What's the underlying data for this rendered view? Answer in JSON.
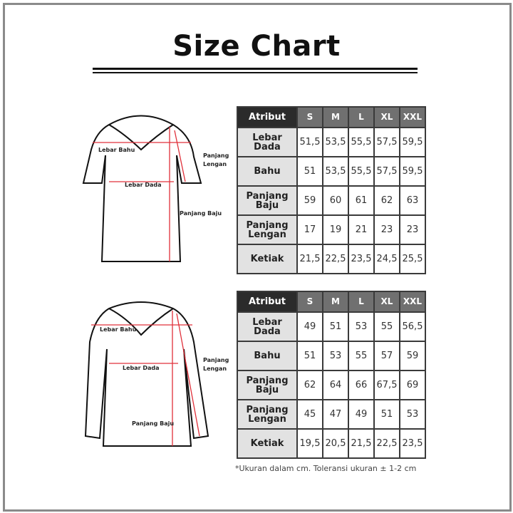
{
  "title": "Size Chart",
  "diagram_labels": {
    "lebar_bahu": "Lebar Bahu",
    "lebar_dada": "Lebar Dada",
    "panjang_baju": "Panjang Baju",
    "panjang_lengan_1": "Panjang",
    "panjang_lengan_2": "Lengan"
  },
  "colors": {
    "header_dark": "#2b2b2b",
    "header_size": "#707070",
    "row_label_bg": "#e2e2e2",
    "measure_line": "#e0303a"
  },
  "chart_data": [
    {
      "type": "table",
      "columns": [
        "Atribut",
        "S",
        "M",
        "L",
        "XL",
        "XXL"
      ],
      "rows": [
        {
          "label": "Lebar Dada",
          "values": [
            "51,5",
            "53,5",
            "55,5",
            "57,5",
            "59,5"
          ]
        },
        {
          "label": "Bahu",
          "values": [
            "51",
            "53,5",
            "55,5",
            "57,5",
            "59,5"
          ]
        },
        {
          "label": "Panjang Baju",
          "values": [
            "59",
            "60",
            "61",
            "62",
            "63"
          ]
        },
        {
          "label": "Panjang Lengan",
          "values": [
            "17",
            "19",
            "21",
            "23",
            "23"
          ]
        },
        {
          "label": "Ketiak",
          "values": [
            "21,5",
            "22,5",
            "23,5",
            "24,5",
            "25,5"
          ]
        }
      ]
    },
    {
      "type": "table",
      "columns": [
        "Atribut",
        "S",
        "M",
        "L",
        "XL",
        "XXL"
      ],
      "rows": [
        {
          "label": "Lebar Dada",
          "values": [
            "49",
            "51",
            "53",
            "55",
            "56,5"
          ]
        },
        {
          "label": "Bahu",
          "values": [
            "51",
            "53",
            "55",
            "57",
            "59"
          ]
        },
        {
          "label": "Panjang Baju",
          "values": [
            "62",
            "64",
            "66",
            "67,5",
            "69"
          ]
        },
        {
          "label": "Panjang Lengan",
          "values": [
            "45",
            "47",
            "49",
            "51",
            "53"
          ]
        },
        {
          "label": "Ketiak",
          "values": [
            "19,5",
            "20,5",
            "21,5",
            "22,5",
            "23,5"
          ]
        }
      ]
    }
  ],
  "note": "*Ukuran dalam cm. Toleransi ukuran ± 1-2 cm"
}
